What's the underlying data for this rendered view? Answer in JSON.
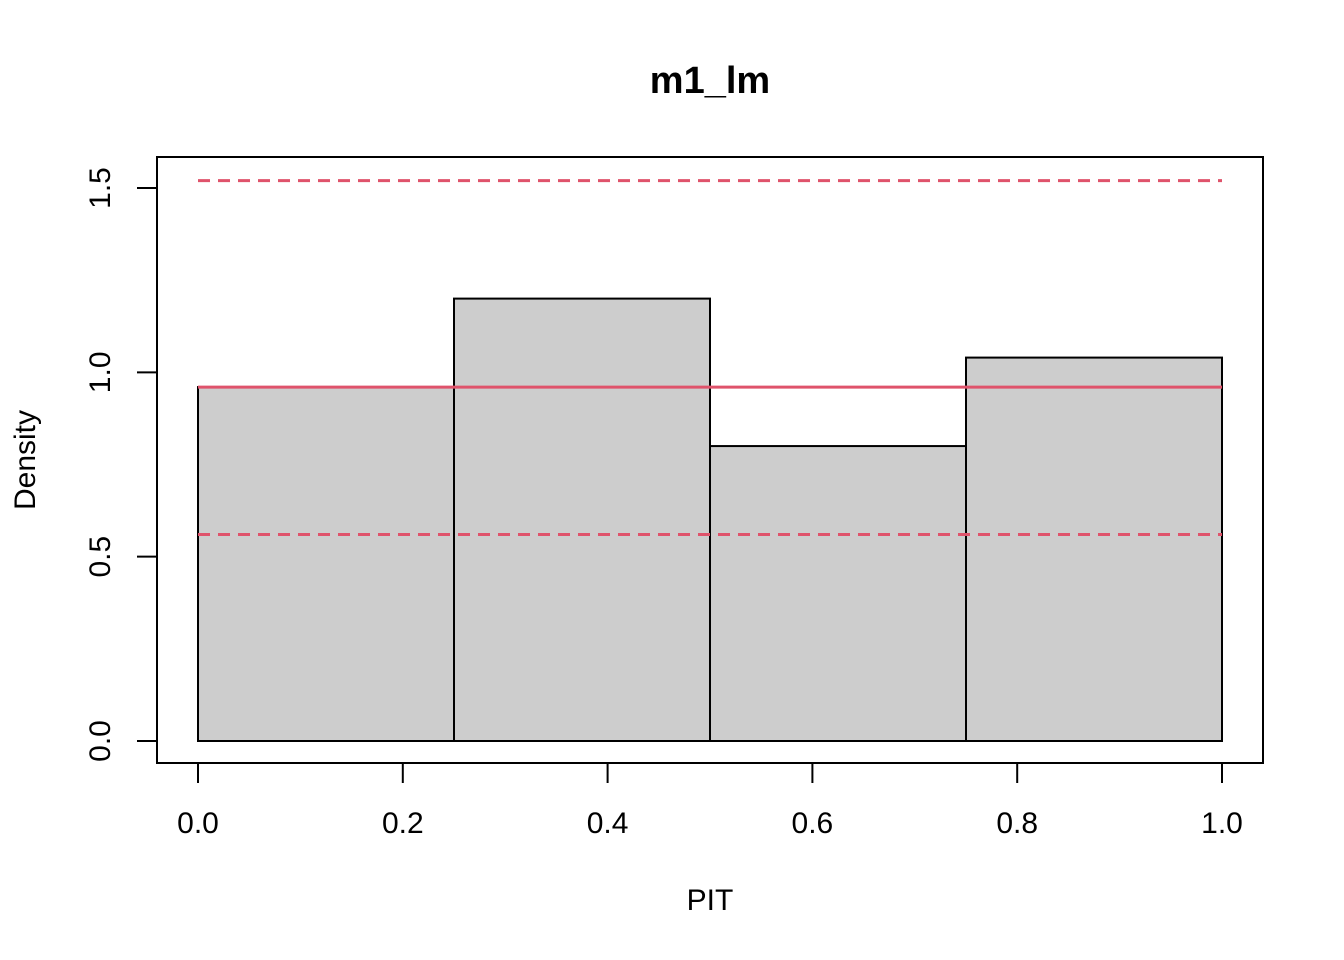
{
  "chart_data": {
    "type": "bar",
    "title": "m1_lm",
    "xlabel": "PIT",
    "ylabel": "Density",
    "xlim": [
      0.0,
      1.0
    ],
    "ylim": [
      0.0,
      1.5
    ],
    "x_ticks": [
      "0.0",
      "0.2",
      "0.4",
      "0.6",
      "0.8",
      "1.0"
    ],
    "y_ticks": [
      "0.0",
      "0.5",
      "1.0",
      "1.5"
    ],
    "bins": [
      {
        "from": 0.0,
        "to": 0.25,
        "value": 0.96
      },
      {
        "from": 0.25,
        "to": 0.5,
        "value": 1.2
      },
      {
        "from": 0.5,
        "to": 0.75,
        "value": 0.8
      },
      {
        "from": 0.75,
        "to": 1.0,
        "value": 1.04
      }
    ],
    "reference_lines": [
      {
        "kind": "solid",
        "value": 0.96
      },
      {
        "kind": "dashed",
        "value": 1.52
      },
      {
        "kind": "dashed",
        "value": 0.56
      }
    ],
    "bar_color": "#CDCDCD",
    "reference_color": "#DF536B",
    "grid": false,
    "legend": "none"
  }
}
